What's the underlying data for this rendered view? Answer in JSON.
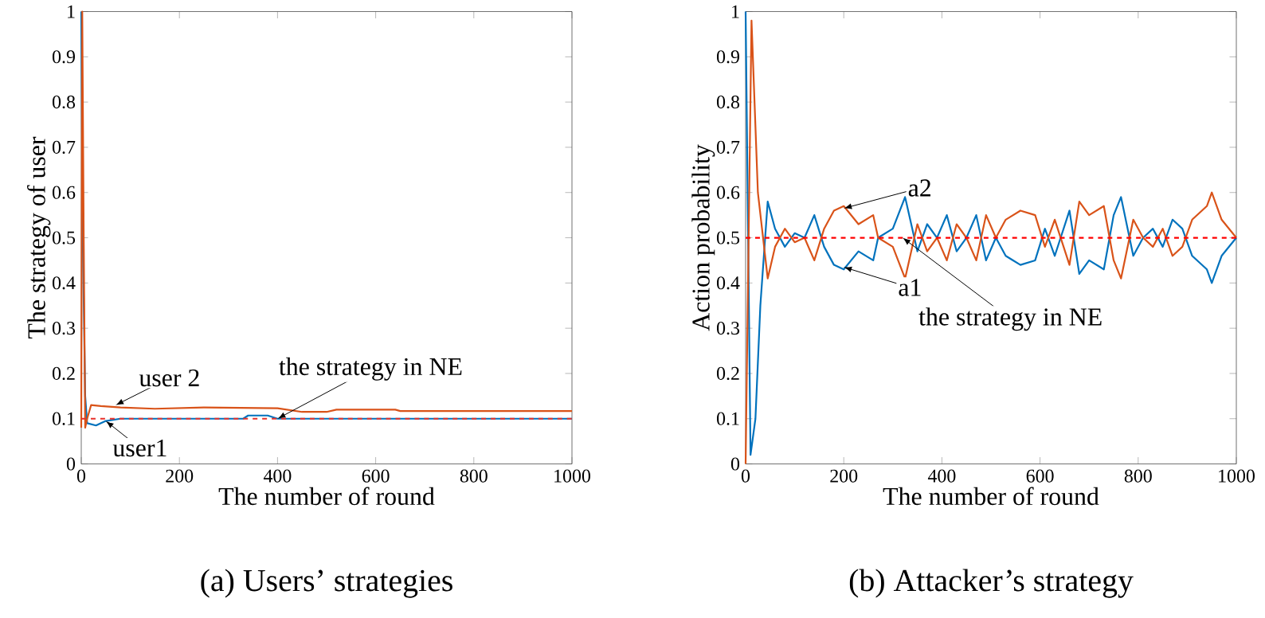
{
  "chart_data": [
    {
      "type": "line",
      "title": "(a) Users’ strategies",
      "xlabel": "The number of round",
      "ylabel": "The strategy of user",
      "xlim": [
        0,
        1000
      ],
      "ylim": [
        0,
        1
      ],
      "xticks": [
        0,
        200,
        400,
        600,
        800,
        1000
      ],
      "yticks": [
        0,
        0.1,
        0.2,
        0.3,
        0.4,
        0.5,
        0.6,
        0.7,
        0.8,
        0.9,
        1
      ],
      "grid": false,
      "marker": "none",
      "line_style": "solid",
      "series": [
        {
          "color": "#0072bd",
          "x": [
            0,
            3,
            8,
            12,
            30,
            50,
            80,
            200,
            330,
            340,
            380,
            400,
            1000
          ],
          "values": [
            1,
            0.5,
            0.15,
            0.09,
            0.085,
            0.095,
            0.1,
            0.1,
            0.1,
            0.107,
            0.107,
            0.1,
            0.1
          ]
        },
        {
          "color": "#d95319",
          "x": [
            0,
            2,
            5,
            8,
            12,
            20,
            40,
            80,
            150,
            250,
            400,
            450,
            500,
            520,
            640,
            650,
            1000
          ],
          "values": [
            0.08,
            1,
            0.5,
            0.08,
            0.1,
            0.13,
            0.128,
            0.125,
            0.122,
            0.125,
            0.123,
            0.115,
            0.115,
            0.12,
            0.12,
            0.117,
            0.117
          ]
        }
      ],
      "ref_lines": [
        {
          "axis": "y",
          "value": 0.1,
          "color": "#e8302a",
          "line_style": "dashed"
        }
      ],
      "annotations": [
        {
          "text": "user 2",
          "x": 70,
          "y": 0.13
        },
        {
          "text": "user1",
          "x": 50,
          "y": 0.095
        },
        {
          "text": "the strategy in NE",
          "x": 400,
          "y": 0.1
        }
      ]
    },
    {
      "type": "line",
      "title": "(b) Attacker’s strategy",
      "xlabel": "The number of round",
      "ylabel": "Action probability",
      "xlim": [
        0,
        1000
      ],
      "ylim": [
        0,
        1
      ],
      "xticks": [
        0,
        200,
        400,
        600,
        800,
        1000
      ],
      "yticks": [
        0,
        0.1,
        0.2,
        0.3,
        0.4,
        0.5,
        0.6,
        0.7,
        0.8,
        0.9,
        1
      ],
      "grid": false,
      "marker": "none",
      "line_style": "solid",
      "series": [
        {
          "color": "#0072bd",
          "x": [
            0,
            10,
            20,
            30,
            45,
            60,
            80,
            100,
            120,
            140,
            160,
            180,
            200,
            230,
            260,
            270,
            300,
            325,
            350,
            370,
            390,
            410,
            430,
            450,
            470,
            490,
            510,
            530,
            560,
            590,
            610,
            630,
            660,
            680,
            700,
            730,
            750,
            765,
            790,
            810,
            830,
            850,
            870,
            890,
            910,
            940,
            950,
            970,
            1000
          ],
          "values": [
            1,
            0.02,
            0.1,
            0.35,
            0.58,
            0.52,
            0.48,
            0.51,
            0.5,
            0.55,
            0.48,
            0.44,
            0.43,
            0.47,
            0.45,
            0.5,
            0.52,
            0.59,
            0.47,
            0.53,
            0.5,
            0.55,
            0.47,
            0.5,
            0.55,
            0.45,
            0.5,
            0.46,
            0.44,
            0.45,
            0.52,
            0.46,
            0.56,
            0.42,
            0.45,
            0.43,
            0.55,
            0.59,
            0.46,
            0.5,
            0.52,
            0.48,
            0.54,
            0.52,
            0.46,
            0.43,
            0.4,
            0.46,
            0.5
          ]
        },
        {
          "color": "#d95319",
          "x": [
            0,
            12,
            25,
            45,
            60,
            80,
            100,
            120,
            140,
            160,
            180,
            200,
            230,
            260,
            270,
            300,
            325,
            350,
            370,
            390,
            410,
            430,
            450,
            470,
            490,
            510,
            530,
            560,
            590,
            610,
            630,
            660,
            680,
            700,
            730,
            750,
            765,
            790,
            810,
            830,
            850,
            870,
            890,
            910,
            940,
            950,
            970,
            1000
          ],
          "values": [
            0,
            0.98,
            0.6,
            0.41,
            0.48,
            0.52,
            0.49,
            0.5,
            0.45,
            0.52,
            0.56,
            0.57,
            0.53,
            0.55,
            0.5,
            0.48,
            0.41,
            0.53,
            0.47,
            0.5,
            0.45,
            0.53,
            0.5,
            0.45,
            0.55,
            0.5,
            0.54,
            0.56,
            0.55,
            0.48,
            0.54,
            0.44,
            0.58,
            0.55,
            0.57,
            0.45,
            0.41,
            0.54,
            0.5,
            0.48,
            0.52,
            0.46,
            0.48,
            0.54,
            0.57,
            0.6,
            0.54,
            0.5
          ]
        }
      ],
      "ref_lines": [
        {
          "axis": "y",
          "value": 0.5,
          "color": "#ff0000",
          "line_style": "dashed"
        }
      ],
      "annotations": [
        {
          "text": "a2",
          "x": 200,
          "y": 0.565
        },
        {
          "text": "a1",
          "x": 200,
          "y": 0.435
        },
        {
          "text": "the strategy in NE",
          "x": 320,
          "y": 0.5
        }
      ]
    }
  ]
}
